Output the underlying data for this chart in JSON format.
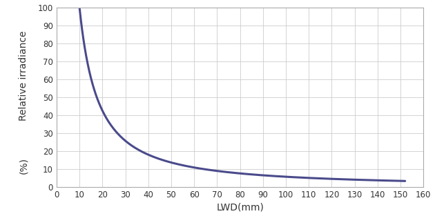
{
  "title": "",
  "xlabel": "LWD(mm)",
  "ylabel_top": "Relative irradiance",
  "ylabel_bottom": "(%)",
  "xlim": [
    0,
    160
  ],
  "ylim": [
    0,
    100
  ],
  "xticks": [
    0,
    10,
    20,
    30,
    40,
    50,
    60,
    70,
    80,
    90,
    100,
    110,
    120,
    130,
    140,
    150,
    160
  ],
  "yticks": [
    0,
    10,
    20,
    30,
    40,
    50,
    60,
    70,
    80,
    90,
    100
  ],
  "line_color": "#4a4a8c",
  "line_width": 2.2,
  "background_color": "#ffffff",
  "grid_color": "#cccccc",
  "grid_linewidth": 0.6,
  "spine_color": "#aaaaaa",
  "tick_label_color": "#333333",
  "tick_label_fontsize": 8.5,
  "xlabel_fontsize": 10,
  "ylabel_fontsize": 10,
  "curve_xstart": 10,
  "curve_xend": 152,
  "curve_ystart": 100,
  "curve_yend": 3.5
}
